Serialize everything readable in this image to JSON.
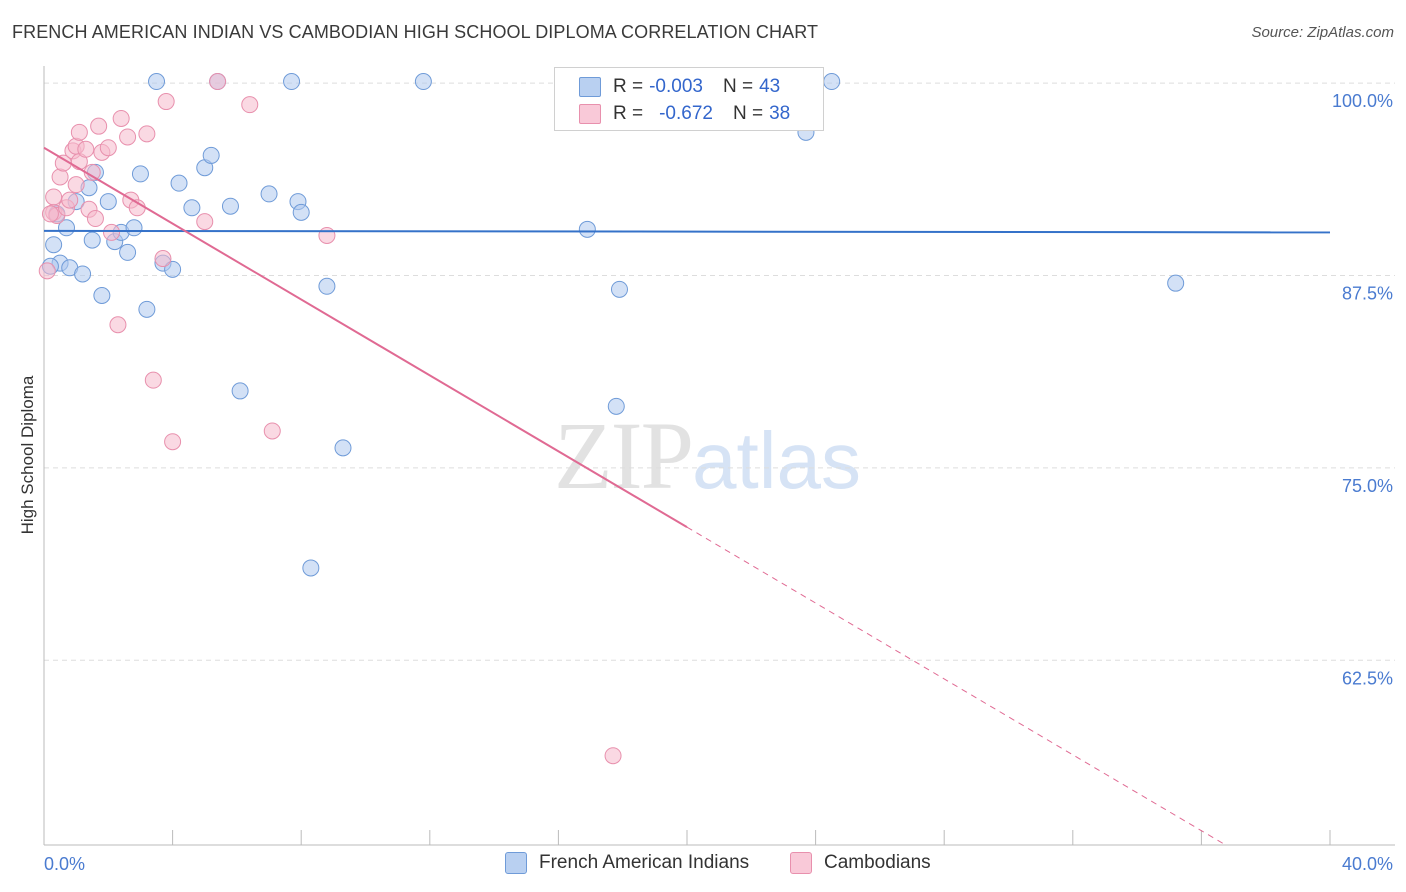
{
  "title": "FRENCH AMERICAN INDIAN VS CAMBODIAN HIGH SCHOOL DIPLOMA CORRELATION CHART",
  "source": "Source: ZipAtlas.com",
  "watermark": {
    "zip": "ZIP",
    "atlas": "atlas"
  },
  "legend": {
    "blue": {
      "r_label": "R =",
      "r_value": "-0.003",
      "n_label": "N =",
      "n_value": "43"
    },
    "pink": {
      "r_label": "R =",
      "r_value": "-0.672",
      "n_label": "N =",
      "n_value": "38"
    }
  },
  "bottom_legend": {
    "blue": "French American Indians",
    "pink": "Cambodians"
  },
  "colors": {
    "blue_fill": "#aec8ef",
    "blue_stroke": "#6f9bd8",
    "blue_line": "#3572c9",
    "pink_fill": "#f6b9cc",
    "pink_stroke": "#e890ad",
    "pink_line": "#e06a93",
    "axis_text": "#4a7bd0",
    "grid": "#dddddd"
  },
  "chart_data": {
    "type": "scatter",
    "title": "FRENCH AMERICAN INDIAN VS CAMBODIAN HIGH SCHOOL DIPLOMA CORRELATION CHART",
    "xlabel": "",
    "ylabel": "High School Diploma",
    "xlim": [
      0,
      40
    ],
    "ylim": [
      50.5,
      101.5
    ],
    "x_tick_labels": [
      "0.0%",
      "40.0%"
    ],
    "y_ticks": [
      100,
      87.5,
      75,
      62.5
    ],
    "y_tick_labels": [
      "100.0%",
      "87.5%",
      "75.0%",
      "62.5%"
    ],
    "series": [
      {
        "name": "French American Indians",
        "color": "blue",
        "r": -0.003,
        "n": 43,
        "trend": {
          "x": [
            0,
            40
          ],
          "y": [
            90.4,
            90.3
          ],
          "dashed_from": null
        },
        "points": [
          [
            0.3,
            89.5
          ],
          [
            0.5,
            88.3
          ],
          [
            0.7,
            90.6
          ],
          [
            0.8,
            88.0
          ],
          [
            1.0,
            92.3
          ],
          [
            1.2,
            87.6
          ],
          [
            1.4,
            93.2
          ],
          [
            1.5,
            89.8
          ],
          [
            1.6,
            94.2
          ],
          [
            1.8,
            86.2
          ],
          [
            2.0,
            92.3
          ],
          [
            2.2,
            89.7
          ],
          [
            2.4,
            90.3
          ],
          [
            2.6,
            89.0
          ],
          [
            2.8,
            90.6
          ],
          [
            3.0,
            94.1
          ],
          [
            3.2,
            85.3
          ],
          [
            3.5,
            100.1
          ],
          [
            3.7,
            88.3
          ],
          [
            4.0,
            87.9
          ],
          [
            4.2,
            93.5
          ],
          [
            4.6,
            91.9
          ],
          [
            5.0,
            94.5
          ],
          [
            5.2,
            95.3
          ],
          [
            5.4,
            100.1
          ],
          [
            5.8,
            92.0
          ],
          [
            6.1,
            80.0
          ],
          [
            7.0,
            92.8
          ],
          [
            7.7,
            100.1
          ],
          [
            7.9,
            92.3
          ],
          [
            8.0,
            91.6
          ],
          [
            8.3,
            68.5
          ],
          [
            8.8,
            86.8
          ],
          [
            9.3,
            76.3
          ],
          [
            11.8,
            100.1
          ],
          [
            16.9,
            90.5
          ],
          [
            17.8,
            79.0
          ],
          [
            17.9,
            86.6
          ],
          [
            23.7,
            96.8
          ],
          [
            24.5,
            100.1
          ],
          [
            35.2,
            87.0
          ],
          [
            0.2,
            88.1
          ],
          [
            0.4,
            91.5
          ]
        ]
      },
      {
        "name": "Cambodians",
        "color": "pink",
        "r": -0.672,
        "n": 38,
        "trend": {
          "x": [
            0,
            40
          ],
          "y": [
            95.8,
            46.5
          ],
          "dashed_from": 20.0
        },
        "points": [
          [
            0.1,
            87.8
          ],
          [
            0.3,
            91.6
          ],
          [
            0.3,
            92.6
          ],
          [
            0.4,
            91.4
          ],
          [
            0.5,
            93.9
          ],
          [
            0.6,
            94.8
          ],
          [
            0.7,
            91.9
          ],
          [
            0.8,
            92.4
          ],
          [
            0.9,
            95.6
          ],
          [
            1.0,
            93.4
          ],
          [
            1.0,
            95.9
          ],
          [
            1.1,
            94.9
          ],
          [
            1.1,
            96.8
          ],
          [
            1.3,
            95.7
          ],
          [
            1.4,
            91.8
          ],
          [
            1.5,
            94.2
          ],
          [
            1.6,
            91.2
          ],
          [
            1.7,
            97.2
          ],
          [
            1.8,
            95.5
          ],
          [
            2.0,
            95.8
          ],
          [
            2.1,
            90.3
          ],
          [
            2.3,
            84.3
          ],
          [
            2.4,
            97.7
          ],
          [
            2.6,
            96.5
          ],
          [
            2.7,
            92.4
          ],
          [
            2.9,
            91.9
          ],
          [
            3.2,
            96.7
          ],
          [
            3.4,
            80.7
          ],
          [
            3.7,
            88.6
          ],
          [
            3.8,
            98.8
          ],
          [
            4.0,
            76.7
          ],
          [
            5.0,
            91.0
          ],
          [
            5.4,
            100.1
          ],
          [
            6.4,
            98.6
          ],
          [
            7.1,
            77.4
          ],
          [
            8.8,
            90.1
          ],
          [
            17.7,
            56.3
          ],
          [
            0.2,
            91.5
          ]
        ]
      }
    ]
  }
}
